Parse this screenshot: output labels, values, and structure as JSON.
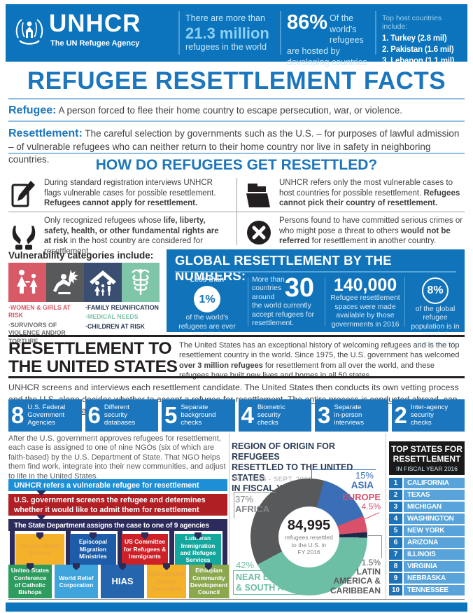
{
  "header": {
    "brand": "UNHCR",
    "tagline": "The UN Refugee Agency",
    "stat1": {
      "line1": "There are more than",
      "number": "21.3 million",
      "line2": "refugees in the world"
    },
    "stat2": {
      "number": "86%",
      "l1": "Of the world's",
      "l2": "refugees",
      "l3": "are hosted by",
      "l4": "developing countries"
    },
    "hosts": {
      "title": "Top host countries include:",
      "items": [
        "1. Turkey (2.8 mil)",
        "2. Pakistan (1.6 mil)",
        "3. Lebanon (1.1 mil)"
      ]
    }
  },
  "title": "REFUGEE RESETTLEMENT FACTS",
  "definitions": [
    {
      "term": "Refugee:",
      "text": " A person forced to flee their home country to escape persecution, war, or violence."
    },
    {
      "term": "Resettlement:",
      "text": " The careful selection by governments such as the U.S. – for purposes of lawful admission – of vulnerable refugees who can neither return to their home country nor live in safety in neighboring countries."
    }
  ],
  "how": {
    "title": "HOW DO REFUGEES GET RESETTLED?",
    "items": [
      {
        "icon": "clipboard-pencil-icon",
        "segments": [
          {
            "t": "During standard registration interviews UNHCR flags vulnerable cases for possible resettlement. ",
            "b": false
          },
          {
            "t": "Refugees cannot apply for resettlement.",
            "b": true
          }
        ]
      },
      {
        "icon": "folder-icon",
        "segments": [
          {
            "t": "UNHCR refers only the most vulnerable cases to host countries for possible resettlement. ",
            "b": false
          },
          {
            "t": "Refugees cannot pick their country of resettlement.",
            "b": true
          }
        ]
      },
      {
        "icon": "hands-icon",
        "segments": [
          {
            "t": "Only recognized refugees whose ",
            "b": false
          },
          {
            "t": "life, liberty, safety, health, or other fundamental rights are at risk",
            "b": true
          },
          {
            "t": " in the host country are considered for resettlement.",
            "b": false
          }
        ]
      },
      {
        "icon": "x-circle-icon",
        "segments": [
          {
            "t": "Persons found to have committed serious crimes or who might pose a threat to others ",
            "b": false
          },
          {
            "t": "would not be referred",
            "b": true
          },
          {
            "t": " for resettlement in another country.",
            "b": false
          }
        ]
      }
    ]
  },
  "vuln": {
    "title": "Vulnerability categories include:",
    "tiles": [
      {
        "icon": "women-girls-icon",
        "color": "#D75A66"
      },
      {
        "icon": "violence-victim-icon",
        "color": "#58595B"
      },
      {
        "icon": "family-roof-icon",
        "color": "#394E71"
      },
      {
        "icon": "caduceus-icon",
        "color": "#7FC5A8"
      }
    ],
    "labels_left": [
      {
        "text": "·WOMEN & GIRLS AT RISK",
        "color": "#D75A66"
      },
      {
        "text": "·SURVIVORS OF VIOLENCE AND/OR TORTURE",
        "color": "#6D6E71"
      }
    ],
    "labels_right": [
      {
        "text": "·FAMILY REUNIFICATION",
        "color": "#2B3A55"
      },
      {
        "text": "·MEDICAL NEEDS",
        "color": "#7FC5A8"
      },
      {
        "text": "·CHILDREN AT RISK",
        "color": "#2B3A55"
      }
    ]
  },
  "global": {
    "title": "GLOBAL RESETTLEMENT BY THE NUMBERS:",
    "col1": {
      "pre": "Less than",
      "value": "1%",
      "post": "of the world's refugees are ever resettled."
    },
    "col2": {
      "pre": "More than\ncountries\naround",
      "value": "30",
      "post": "the world currently accept refugees for resettlement."
    },
    "col3": {
      "value": "140,000",
      "post": "Refugee resettlement spaces were made available by those governments in 2016"
    },
    "col4": {
      "value": "8%",
      "post": "of the global refugee population is in need of resettlement"
    }
  },
  "us": {
    "heading_line1": "RESETTLEMENT TO",
    "heading_line2": "THE UNITED STATES",
    "paragraph": [
      {
        "t": "The United States has an exceptional history of welcoming refugees and is the top resettlement country in the world. Since 1975, the U.S. government has welcomed ",
        "b": false
      },
      {
        "t": "over 3 million refugees",
        "b": true
      },
      {
        "t": " for resettlement from all over the world, and these refugees have built new lives and homes in all 50 states.",
        "b": false
      }
    ],
    "vetting": [
      {
        "t": "UNHCR screens and interviews each resettlement candidate. The United States then conducts its own vetting process and the U.S. alone decides whether to accept a refugee for resettlement. ",
        "b": false
      },
      {
        "t": "The entire process is conducted abroad, can take up to 2 years, and involves:",
        "b": false,
        "u": true
      }
    ],
    "steps": [
      {
        "num": "8",
        "label": "U.S. Federal\nGovernment\nAgencies"
      },
      {
        "num": "6",
        "label": "Different\nsecurity\ndatabases"
      },
      {
        "num": "5",
        "label": "Separate\nbackground\nchecks"
      },
      {
        "num": "4",
        "label": "Biometric\nsecurity\nchecks"
      },
      {
        "num": "3",
        "label": "Separate\nin-person\ninterviews"
      },
      {
        "num": "2",
        "label": "Inter-agency\nsecurity\nchecks"
      }
    ]
  },
  "process": {
    "paragraph": "After the U.S. government approves refugees for resettlement, each case is assigned to one of nine NGOs (six of which are faith-based) by the U.S. Department of State. That NGO helps them find work, integrate into their new communities, and adjust to life in the United States.",
    "flow": [
      {
        "text": "UNHCR refers a vulnerable refugee for resettlement",
        "color": "#1D8FD7"
      },
      {
        "text": "U.S. government screens the refugee and determines whether it would like to admit them for resettlement",
        "color": "#B01F24"
      },
      {
        "text": "The State Department assigns the case to one of 9 agencies",
        "color": "#2B2B5C"
      }
    ],
    "agencies_top": [
      {
        "name": "Church World\nService",
        "color": "#F3B229",
        "text_color": "#EDA33F"
      },
      {
        "name": "Episcopal\nMigration\nMinistries",
        "color": "#1C5CA8",
        "text_color": "#FFFFFF"
      },
      {
        "name": "US Committee\nfor Refugees &\nImmigrants",
        "color": "#CE2027",
        "text_color": "#FFFFFF"
      },
      {
        "name": "Lutheran\nImmigration\nand Refugee\nServices",
        "color": "#14A79D",
        "text_color": "#FFFFFF"
      }
    ],
    "agencies_bottom": [
      {
        "name": "United States\nConference\nof Catholic\nBishops",
        "color": "#2E9B5F",
        "text_color": "#FFFFFF"
      },
      {
        "name": "World Relief\nCorporation",
        "color": "#3FA4DC",
        "text_color": "#FFFFFF"
      },
      {
        "name": "HIAS",
        "color": "#2465AE",
        "text_color": "#FFFFFF"
      },
      {
        "name": "International\nRescue\nCommittee",
        "color": "#F3B229",
        "text_color": "#EDA33F"
      },
      {
        "name": "Ethiopian\nCommunity\nDevelopment\nCouncil",
        "color": "#8CA84F",
        "text_color": "#FFFFFF"
      }
    ]
  },
  "chart_data": {
    "type": "pie",
    "title": "REGION OF ORIGIN FOR REFUGEES\nRESETTLED TO THE UNITED STATES\nIN FISCAL YEAR 2016",
    "subtitle": "OCT. 2015 - SEPT. 2016",
    "center_value": "84,995",
    "center_label": "refugees resettled\nto the U.S. in\nFY 2016",
    "start_angle_deg": 15,
    "legend_position": "callouts",
    "slices": [
      {
        "label": "ASIA",
        "value": 15,
        "color": "#3A6FB7"
      },
      {
        "label": "EUROPE",
        "value": 4.5,
        "color": "#D8506A"
      },
      {
        "label": "LATIN AMERICA & CARIBBEAN",
        "value": 1.5,
        "color": "#1E2A4A"
      },
      {
        "label": "NEAR EAST & SOUTH ASIA",
        "value": 42,
        "color": "#6CBEA4"
      },
      {
        "label": "AFRICA",
        "value": 37,
        "color": "#58595B"
      }
    ]
  },
  "mid_labels": {
    "africa": {
      "pct": "37%",
      "name": "AFRICA",
      "color": "#808285"
    },
    "asia": {
      "pct": "15%",
      "name": "ASIA",
      "color": "#3A6FB7"
    },
    "europe": {
      "name": "EUROPE",
      "pct": "4.5%",
      "color": "#D8506A"
    },
    "latam": {
      "pct": "1.5%",
      "name": "LATIN\nAMERICA &\nCARIBBEAN",
      "color": "#58595B"
    },
    "neareast": {
      "pct": "42%",
      "name": "NEAR EAST\n& SOUTH ASIA",
      "color": "#6CBEA4"
    }
  },
  "top_states": {
    "header_l1": "TOP STATES FOR",
    "header_l2": "RESETTLEMENT",
    "header_l3": "IN FISCAL YEAR 2016",
    "rows": [
      {
        "rank": "1",
        "state": "CALIFORNIA"
      },
      {
        "rank": "2",
        "state": "TEXAS"
      },
      {
        "rank": "3",
        "state": "MICHIGAN"
      },
      {
        "rank": "4",
        "state": "WASHINGTON"
      },
      {
        "rank": "5",
        "state": "NEW YORK"
      },
      {
        "rank": "6",
        "state": "ARIZONA"
      },
      {
        "rank": "7",
        "state": "ILLINOIS"
      },
      {
        "rank": "8",
        "state": "VIRGINIA"
      },
      {
        "rank": "9",
        "state": "NEBRASKA"
      },
      {
        "rank": "10",
        "state": "TENNESSEE"
      }
    ]
  }
}
